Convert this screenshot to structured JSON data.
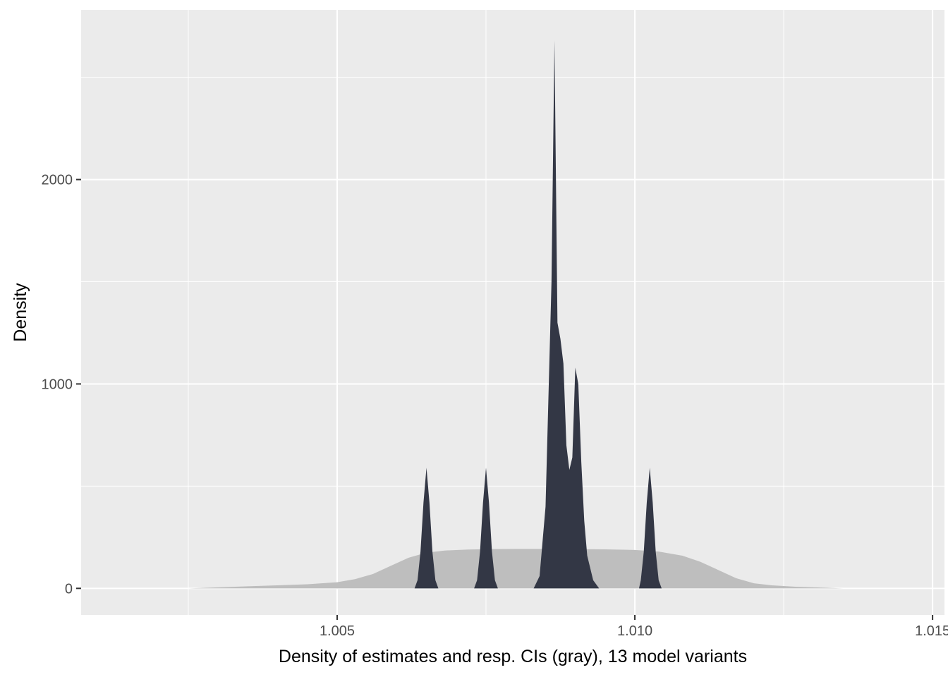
{
  "chart_data": {
    "type": "area",
    "title": "",
    "xlabel": "Density of estimates and resp. CIs (gray), 13 model variants",
    "ylabel": "Density",
    "xlim": [
      1.0007,
      1.0152
    ],
    "ylim": [
      -130,
      2830
    ],
    "x_ticks": [
      {
        "value": 1.005,
        "label": "1.005"
      },
      {
        "value": 1.01,
        "label": "1.010"
      },
      {
        "value": 1.015,
        "label": "1.015"
      }
    ],
    "x_minor": [
      1.0025,
      1.0075,
      1.0125
    ],
    "y_ticks": [
      {
        "value": 0,
        "label": "0"
      },
      {
        "value": 1000,
        "label": "1000"
      },
      {
        "value": 2000,
        "label": "2000"
      }
    ],
    "y_minor": [
      500,
      1500,
      2500
    ],
    "grid": true,
    "colors": {
      "panel": "#ebebeb",
      "grid": "#ffffff",
      "ci_fill": "#bebebe",
      "estimate_fill": "#333745"
    },
    "series": [
      {
        "name": "CIs",
        "color": "#bebebe",
        "x": [
          1.0025,
          1.003,
          1.0035,
          1.004,
          1.0045,
          1.005,
          1.0053,
          1.0056,
          1.0059,
          1.0062,
          1.0065,
          1.0068,
          1.0072,
          1.0076,
          1.008,
          1.0085,
          1.009,
          1.0095,
          1.01,
          1.0104,
          1.0108,
          1.0111,
          1.0114,
          1.0117,
          1.012,
          1.0123,
          1.0127,
          1.0131,
          1.0135
        ],
        "y": [
          0,
          5,
          10,
          15,
          20,
          30,
          45,
          70,
          110,
          150,
          175,
          185,
          190,
          192,
          193,
          193,
          192,
          191,
          188,
          180,
          160,
          130,
          90,
          50,
          25,
          15,
          8,
          4,
          0
        ]
      },
      {
        "name": "estimates",
        "color": "#333745",
        "x": [
          1.0063,
          1.00635,
          1.0064,
          1.00645,
          1.0065,
          1.00655,
          1.0066,
          1.00665,
          1.0067,
          1.0067,
          1.0073,
          1.00735,
          1.0074,
          1.00745,
          1.0075,
          1.00755,
          1.0076,
          1.00765,
          1.0077,
          1.0077,
          1.0083,
          1.0084,
          1.0085,
          1.0086,
          1.00865,
          1.0087,
          1.00875,
          1.0088,
          1.00885,
          1.0089,
          1.00895,
          1.009,
          1.00905,
          1.0091,
          1.00915,
          1.0092,
          1.0093,
          1.0094,
          1.0094,
          1.01007,
          1.0101,
          1.01015,
          1.0102,
          1.01025,
          1.0103,
          1.01035,
          1.0104,
          1.01045,
          1.0105,
          1.0105
        ],
        "y": [
          0,
          40,
          180,
          420,
          590,
          420,
          180,
          40,
          0,
          0,
          0,
          40,
          180,
          420,
          590,
          420,
          180,
          40,
          0,
          0,
          0,
          60,
          400,
          1500,
          2680,
          1300,
          1220,
          1100,
          700,
          580,
          640,
          1080,
          1000,
          620,
          330,
          160,
          40,
          0,
          0,
          0,
          40,
          180,
          420,
          590,
          420,
          180,
          40,
          0,
          0,
          0
        ]
      }
    ]
  }
}
